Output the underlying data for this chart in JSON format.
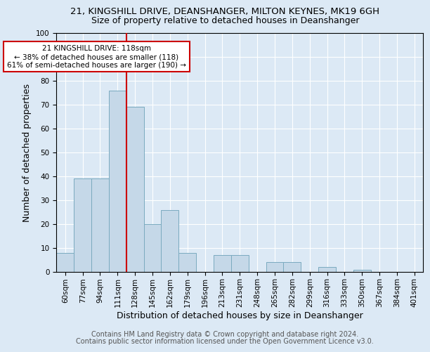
{
  "title_line1": "21, KINGSHILL DRIVE, DEANSHANGER, MILTON KEYNES, MK19 6GH",
  "title_line2": "Size of property relative to detached houses in Deanshanger",
  "xlabel": "Distribution of detached houses by size in Deanshanger",
  "ylabel": "Number of detached properties",
  "footnote1": "Contains HM Land Registry data © Crown copyright and database right 2024.",
  "footnote2": "Contains public sector information licensed under the Open Government Licence v3.0.",
  "categories": [
    "60sqm",
    "77sqm",
    "94sqm",
    "111sqm",
    "128sqm",
    "145sqm",
    "162sqm",
    "179sqm",
    "196sqm",
    "213sqm",
    "231sqm",
    "248sqm",
    "265sqm",
    "282sqm",
    "299sqm",
    "316sqm",
    "333sqm",
    "350sqm",
    "367sqm",
    "384sqm",
    "401sqm"
  ],
  "values": [
    8,
    39,
    39,
    76,
    69,
    20,
    26,
    8,
    0,
    7,
    7,
    0,
    4,
    4,
    0,
    2,
    0,
    1,
    0,
    0,
    0
  ],
  "bar_color": "#c5d8e8",
  "bar_edge_color": "#7aaabf",
  "vline_color": "#cc0000",
  "annotation_text": "21 KINGSHILL DRIVE: 118sqm\n← 38% of detached houses are smaller (118)\n61% of semi-detached houses are larger (190) →",
  "annotation_box_color": "#ffffff",
  "annotation_box_edge": "#cc0000",
  "ylim": [
    0,
    100
  ],
  "yticks": [
    0,
    10,
    20,
    30,
    40,
    50,
    60,
    70,
    80,
    90,
    100
  ],
  "background_color": "#dce9f5",
  "plot_bg_color": "#dce9f5",
  "grid_color": "#ffffff",
  "title_fontsize": 9.5,
  "subtitle_fontsize": 9,
  "tick_fontsize": 7.5,
  "label_fontsize": 9,
  "annotation_fontsize": 7.5,
  "footnote_fontsize": 7
}
